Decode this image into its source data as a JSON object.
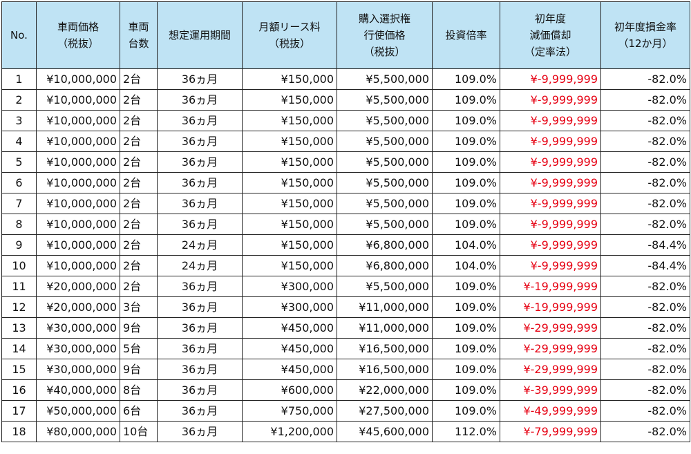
{
  "header": {
    "no": [
      "No."
    ],
    "price": [
      "車両価格",
      "（税抜）"
    ],
    "count": [
      "車両",
      "台数"
    ],
    "period": [
      "想定運用期間"
    ],
    "lease": [
      "月額リース料",
      "（税抜）"
    ],
    "option": [
      "購入選択権",
      "行使価格",
      "（税抜）"
    ],
    "ratio": [
      "投資倍率"
    ],
    "depr": [
      "初年度",
      "減価償却",
      "（定率法）"
    ],
    "loss": [
      "初年度損金率",
      "（12か月）"
    ]
  },
  "colors": {
    "header_bg": "#bfe3f4",
    "negative_text": "#e60012",
    "border": "#222222"
  },
  "rows": [
    {
      "no": "1",
      "price": "¥10,000,000",
      "count": "2台",
      "period": "36ヵ月",
      "lease": "¥150,000",
      "option": "¥5,500,000",
      "ratio": "109.0%",
      "depr": "¥-9,999,999",
      "loss": "-82.0%"
    },
    {
      "no": "2",
      "price": "¥10,000,000",
      "count": "2台",
      "period": "36ヵ月",
      "lease": "¥150,000",
      "option": "¥5,500,000",
      "ratio": "109.0%",
      "depr": "¥-9,999,999",
      "loss": "-82.0%"
    },
    {
      "no": "3",
      "price": "¥10,000,000",
      "count": "2台",
      "period": "36ヵ月",
      "lease": "¥150,000",
      "option": "¥5,500,000",
      "ratio": "109.0%",
      "depr": "¥-9,999,999",
      "loss": "-82.0%"
    },
    {
      "no": "4",
      "price": "¥10,000,000",
      "count": "2台",
      "period": "36ヵ月",
      "lease": "¥150,000",
      "option": "¥5,500,000",
      "ratio": "109.0%",
      "depr": "¥-9,999,999",
      "loss": "-82.0%"
    },
    {
      "no": "5",
      "price": "¥10,000,000",
      "count": "2台",
      "period": "36ヵ月",
      "lease": "¥150,000",
      "option": "¥5,500,000",
      "ratio": "109.0%",
      "depr": "¥-9,999,999",
      "loss": "-82.0%"
    },
    {
      "no": "6",
      "price": "¥10,000,000",
      "count": "2台",
      "period": "36ヵ月",
      "lease": "¥150,000",
      "option": "¥5,500,000",
      "ratio": "109.0%",
      "depr": "¥-9,999,999",
      "loss": "-82.0%"
    },
    {
      "no": "7",
      "price": "¥10,000,000",
      "count": "2台",
      "period": "36ヵ月",
      "lease": "¥150,000",
      "option": "¥5,500,000",
      "ratio": "109.0%",
      "depr": "¥-9,999,999",
      "loss": "-82.0%"
    },
    {
      "no": "8",
      "price": "¥10,000,000",
      "count": "2台",
      "period": "36ヵ月",
      "lease": "¥150,000",
      "option": "¥5,500,000",
      "ratio": "109.0%",
      "depr": "¥-9,999,999",
      "loss": "-82.0%"
    },
    {
      "no": "9",
      "price": "¥10,000,000",
      "count": "2台",
      "period": "24ヵ月",
      "lease": "¥150,000",
      "option": "¥6,800,000",
      "ratio": "104.0%",
      "depr": "¥-9,999,999",
      "loss": "-84.4%"
    },
    {
      "no": "10",
      "price": "¥10,000,000",
      "count": "2台",
      "period": "24ヵ月",
      "lease": "¥150,000",
      "option": "¥6,800,000",
      "ratio": "104.0%",
      "depr": "¥-9,999,999",
      "loss": "-84.4%"
    },
    {
      "no": "11",
      "price": "¥20,000,000",
      "count": "2台",
      "period": "36ヵ月",
      "lease": "¥300,000",
      "option": "¥5,500,000",
      "ratio": "109.0%",
      "depr": "¥-19,999,999",
      "loss": "-82.0%"
    },
    {
      "no": "12",
      "price": "¥20,000,000",
      "count": "3台",
      "period": "36ヵ月",
      "lease": "¥300,000",
      "option": "¥11,000,000",
      "ratio": "109.0%",
      "depr": "¥-19,999,999",
      "loss": "-82.0%"
    },
    {
      "no": "13",
      "price": "¥30,000,000",
      "count": "9台",
      "period": "36ヵ月",
      "lease": "¥450,000",
      "option": "¥11,000,000",
      "ratio": "109.0%",
      "depr": "¥-29,999,999",
      "loss": "-82.0%"
    },
    {
      "no": "14",
      "price": "¥30,000,000",
      "count": "5台",
      "period": "36ヵ月",
      "lease": "¥450,000",
      "option": "¥16,500,000",
      "ratio": "109.0%",
      "depr": "¥-29,999,999",
      "loss": "-82.0%"
    },
    {
      "no": "15",
      "price": "¥30,000,000",
      "count": "9台",
      "period": "36ヵ月",
      "lease": "¥450,000",
      "option": "¥16,500,000",
      "ratio": "109.0%",
      "depr": "¥-29,999,999",
      "loss": "-82.0%"
    },
    {
      "no": "16",
      "price": "¥40,000,000",
      "count": "8台",
      "period": "36ヵ月",
      "lease": "¥600,000",
      "option": "¥22,000,000",
      "ratio": "109.0%",
      "depr": "¥-39,999,999",
      "loss": "-82.0%"
    },
    {
      "no": "17",
      "price": "¥50,000,000",
      "count": "6台",
      "period": "36ヵ月",
      "lease": "¥750,000",
      "option": "¥27,500,000",
      "ratio": "109.0%",
      "depr": "¥-49,999,999",
      "loss": "-82.0%"
    },
    {
      "no": "18",
      "price": "¥80,000,000",
      "count": "10台",
      "period": "36ヵ月",
      "lease": "¥1,200,000",
      "option": "¥45,600,000",
      "ratio": "112.0%",
      "depr": "¥-79,999,999",
      "loss": "-82.0%"
    }
  ]
}
